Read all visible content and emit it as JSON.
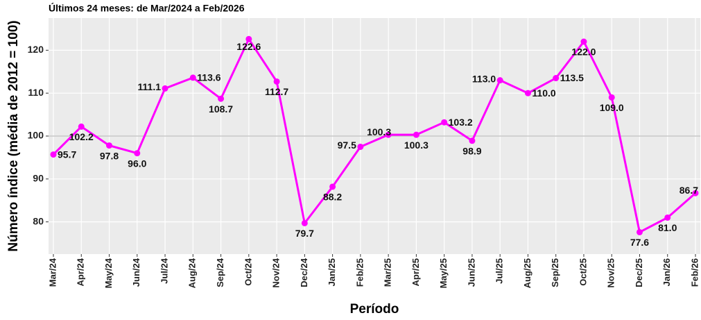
{
  "chart_data": {
    "type": "line",
    "title": "Últimos 24 meses: de Mar/2024 a Feb/2026",
    "ylabel": "Número índice (média de 2012 = 100)",
    "xlabel": "Período",
    "categories": [
      "Mar/24",
      "Apr/24",
      "May/24",
      "Jun/24",
      "Jul/24",
      "Aug/24",
      "Sep/24",
      "Oct/24",
      "Nov/24",
      "Dec/24",
      "Jan/25",
      "Feb/25",
      "Mar/25",
      "Apr/25",
      "May/25",
      "Jun/25",
      "Jul/25",
      "Aug/25",
      "Sep/25",
      "Oct/25",
      "Nov/25",
      "Dec/25",
      "Jan/26",
      "Feb/26"
    ],
    "values": [
      95.7,
      102.2,
      97.8,
      96.0,
      111.1,
      113.6,
      108.7,
      122.6,
      112.7,
      79.7,
      88.2,
      97.5,
      100.3,
      100.3,
      103.2,
      98.9,
      113.0,
      110.0,
      113.5,
      122.0,
      109.0,
      77.6,
      81.0,
      86.7
    ],
    "value_labels": [
      "95.7",
      "102.2",
      "97.8",
      "96.0",
      "111.1",
      "113.6",
      "108.7",
      "122.6",
      "112.7",
      "79.7",
      "88.2",
      "97.5",
      "100.3",
      "100.3",
      "103.2",
      "98.9",
      "113.0",
      "110.0",
      "113.5",
      "122.0",
      "109.0",
      "77.6",
      "81.0",
      "86.7"
    ],
    "color": "#ff00ff",
    "ylim": [
      72.5,
      127.5
    ],
    "yticks": [
      80,
      90,
      100,
      110,
      120
    ],
    "reference_line": 100,
    "grid": true
  }
}
